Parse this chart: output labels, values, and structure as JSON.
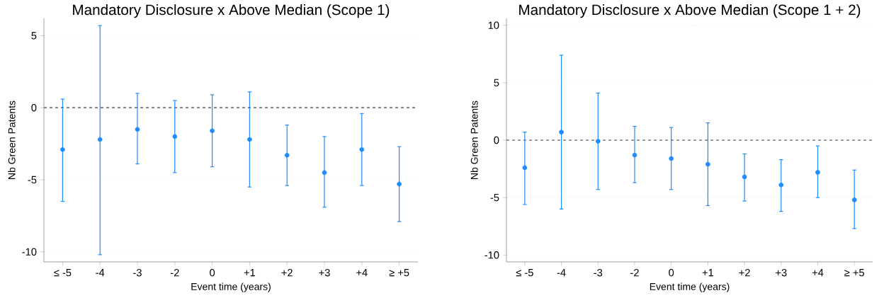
{
  "chart_data": [
    {
      "type": "scatter",
      "title": "Mandatory Disclosure x Above Median (Scope 1)",
      "xlabel": "Event time (years)",
      "ylabel": "Nb Green Patents",
      "categories": [
        "≤ -5",
        "-4",
        "-3",
        "-2",
        "0",
        "+1",
        "+2",
        "+3",
        "+4",
        "≥ +5"
      ],
      "series": [
        {
          "color": "#1e8cff",
          "values": [
            -2.9,
            -2.2,
            -1.5,
            -2.0,
            -1.6,
            -2.2,
            -3.3,
            -4.5,
            -2.9,
            -5.3
          ],
          "errors": [
            [
              -6.5,
              0.6
            ],
            [
              -10.2,
              5.7
            ],
            [
              -3.9,
              1.0
            ],
            [
              -4.5,
              0.5
            ],
            [
              -4.1,
              0.9
            ],
            [
              -5.5,
              1.1
            ],
            [
              -5.4,
              -1.2
            ],
            [
              -6.9,
              -2.0
            ],
            [
              -5.4,
              -0.4
            ],
            [
              -7.9,
              -2.7
            ]
          ]
        }
      ],
      "ylim": [
        -10.7,
        6.2
      ],
      "yticks": [
        -10,
        -5,
        0,
        5
      ],
      "grid": "y",
      "marker": "circle",
      "ref_lines": [
        {
          "axis": "y",
          "value": 0,
          "color": "#404040",
          "line_style": "dashed"
        }
      ]
    },
    {
      "type": "scatter",
      "title": "Mandatory Disclosure x Above Median (Scope 1 + 2)",
      "xlabel": "Event time (years)",
      "ylabel": "Nb Green Patents",
      "categories": [
        "≤ -5",
        "-4",
        "-3",
        "-2",
        "0",
        "+1",
        "+2",
        "+3",
        "+4",
        "≥ +5"
      ],
      "series": [
        {
          "color": "#1e8cff",
          "values": [
            -2.4,
            0.7,
            -0.1,
            -1.3,
            -1.6,
            -2.1,
            -3.2,
            -3.9,
            -2.8,
            -5.2
          ],
          "errors": [
            [
              -5.6,
              0.7
            ],
            [
              -6.0,
              7.4
            ],
            [
              -4.3,
              4.1
            ],
            [
              -3.7,
              1.2
            ],
            [
              -4.3,
              1.1
            ],
            [
              -5.7,
              1.5
            ],
            [
              -5.3,
              -1.2
            ],
            [
              -6.2,
              -1.7
            ],
            [
              -5.0,
              -0.5
            ],
            [
              -7.7,
              -2.6
            ]
          ]
        }
      ],
      "ylim": [
        -10.6,
        10.6
      ],
      "yticks": [
        -10,
        -5,
        0,
        5,
        10
      ],
      "grid": "y",
      "marker": "circle",
      "ref_lines": [
        {
          "axis": "y",
          "value": 0,
          "color": "#404040",
          "line_style": "dashed"
        }
      ]
    }
  ]
}
